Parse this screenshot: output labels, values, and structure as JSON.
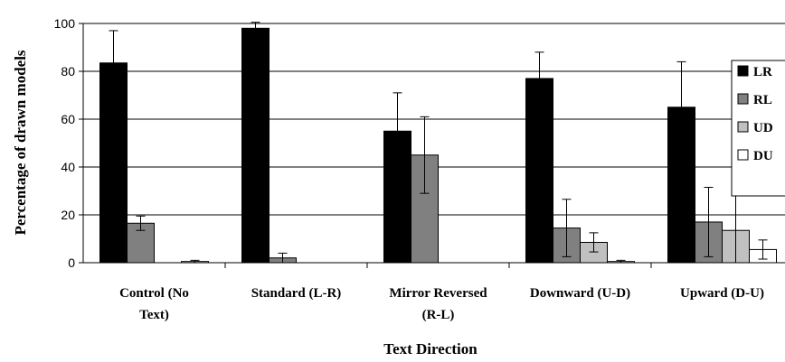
{
  "chart_data": {
    "type": "bar",
    "title": "",
    "xlabel": "Text Direction",
    "ylabel": "Percentage of drawn models",
    "ylim": [
      0,
      100
    ],
    "yticks": [
      0,
      20,
      40,
      60,
      80,
      100
    ],
    "grid": true,
    "legend_position": "right",
    "categories": [
      [
        "Control (No",
        "Text)"
      ],
      [
        "Standard (L-R)"
      ],
      [
        "Mirror Reversed",
        "(R-L)"
      ],
      [
        "Downward (U-D)"
      ],
      [
        "Upward (D-U)"
      ]
    ],
    "series": [
      {
        "name": "LR",
        "color": "#000000",
        "values": [
          83.5,
          98,
          55,
          77,
          65
        ],
        "errors": [
          13.5,
          2.5,
          16,
          11,
          19
        ]
      },
      {
        "name": "RL",
        "color": "#808080",
        "values": [
          16.5,
          2,
          45,
          14.5,
          17
        ],
        "errors": [
          3,
          2,
          16,
          12,
          14.5
        ]
      },
      {
        "name": "UD",
        "color": "#c0c0c0",
        "values": [
          0,
          0,
          0,
          8.5,
          13.5
        ],
        "errors": [
          0,
          0,
          0,
          4,
          15
        ]
      },
      {
        "name": "DU",
        "color": "#ffffff",
        "values": [
          0.5,
          0,
          0,
          0.5,
          5.5
        ],
        "errors": [
          0.5,
          0,
          0,
          0.5,
          4
        ]
      }
    ]
  }
}
